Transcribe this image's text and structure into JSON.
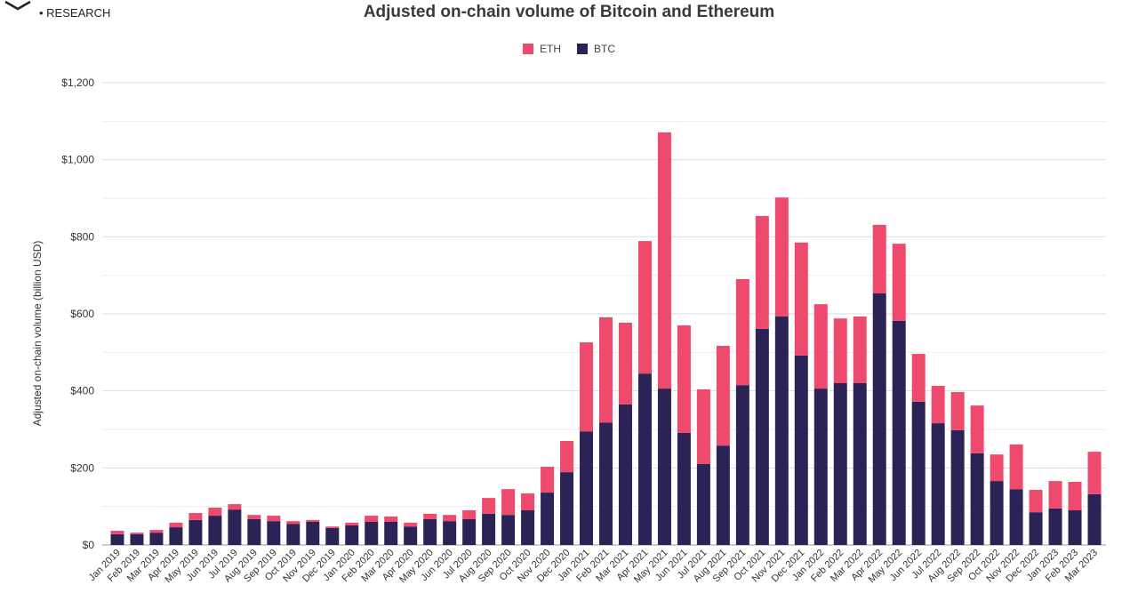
{
  "brand": {
    "subtitle": "• RESEARCH"
  },
  "chart_data": {
    "type": "bar",
    "stacked": true,
    "title": "Adjusted on-chain volume of Bitcoin and Ethereum",
    "xlabel": "",
    "ylabel": "Adjusted on-chain volume (billion USD)",
    "ylim": [
      0,
      1200
    ],
    "yticks": [
      0,
      200,
      400,
      600,
      800,
      1000,
      1200
    ],
    "ytick_labels": [
      "$0",
      "$200",
      "$400",
      "$600",
      "$800",
      "$1,000",
      "$1,200"
    ],
    "grid": true,
    "legend_position": "top-center",
    "categories": [
      "Jan 2019",
      "Feb 2019",
      "Mar 2019",
      "Apr 2019",
      "May 2019",
      "Jun 2019",
      "Jul 2019",
      "Aug 2019",
      "Sep 2019",
      "Oct 2019",
      "Nov 2019",
      "Dec 2019",
      "Jan 2020",
      "Feb 2020",
      "Mar 2020",
      "Apr 2020",
      "May 2020",
      "Jun 2020",
      "Jul 2020",
      "Aug 2020",
      "Sep 2020",
      "Oct 2020",
      "Nov 2020",
      "Dec 2020",
      "Jan 2021",
      "Feb 2021",
      "Mar 2021",
      "Apr 2021",
      "May 2021",
      "Jun 2021",
      "Jul 2021",
      "Aug 2021",
      "Sep 2021",
      "Oct 2021",
      "Nov 2021",
      "Dec 2021",
      "Jan 2022",
      "Feb 2022",
      "Mar 2022",
      "Apr 2022",
      "May 2022",
      "Jun 2022",
      "Jul 2022",
      "Aug 2022",
      "Sep 2022",
      "Oct 2022",
      "Nov 2022",
      "Dec 2022",
      "Jan 2023",
      "Feb 2023",
      "Mar 2023"
    ],
    "series": [
      {
        "name": "BTC",
        "color": "#2b2356",
        "values": [
          28,
          28,
          32,
          46,
          65,
          76,
          92,
          67,
          62,
          55,
          60,
          44,
          51,
          60,
          60,
          48,
          67,
          62,
          67,
          81,
          78,
          90,
          136,
          189,
          295,
          318,
          365,
          445,
          406,
          291,
          210,
          258,
          415,
          561,
          593,
          492,
          406,
          420,
          420,
          653,
          582,
          372,
          316,
          298,
          238,
          166,
          145,
          85,
          95,
          90,
          132
        ]
      },
      {
        "name": "ETH",
        "color": "#ee4a6e",
        "values": [
          9,
          4,
          7,
          12,
          18,
          21,
          14,
          11,
          14,
          7,
          5,
          4,
          7,
          16,
          14,
          10,
          14,
          16,
          23,
          41,
          67,
          44,
          67,
          81,
          231,
          273,
          212,
          344,
          665,
          279,
          194,
          259,
          275,
          293,
          309,
          293,
          219,
          168,
          173,
          178,
          200,
          124,
          97,
          99,
          124,
          69,
          116,
          58,
          71,
          74,
          110
        ]
      }
    ]
  }
}
